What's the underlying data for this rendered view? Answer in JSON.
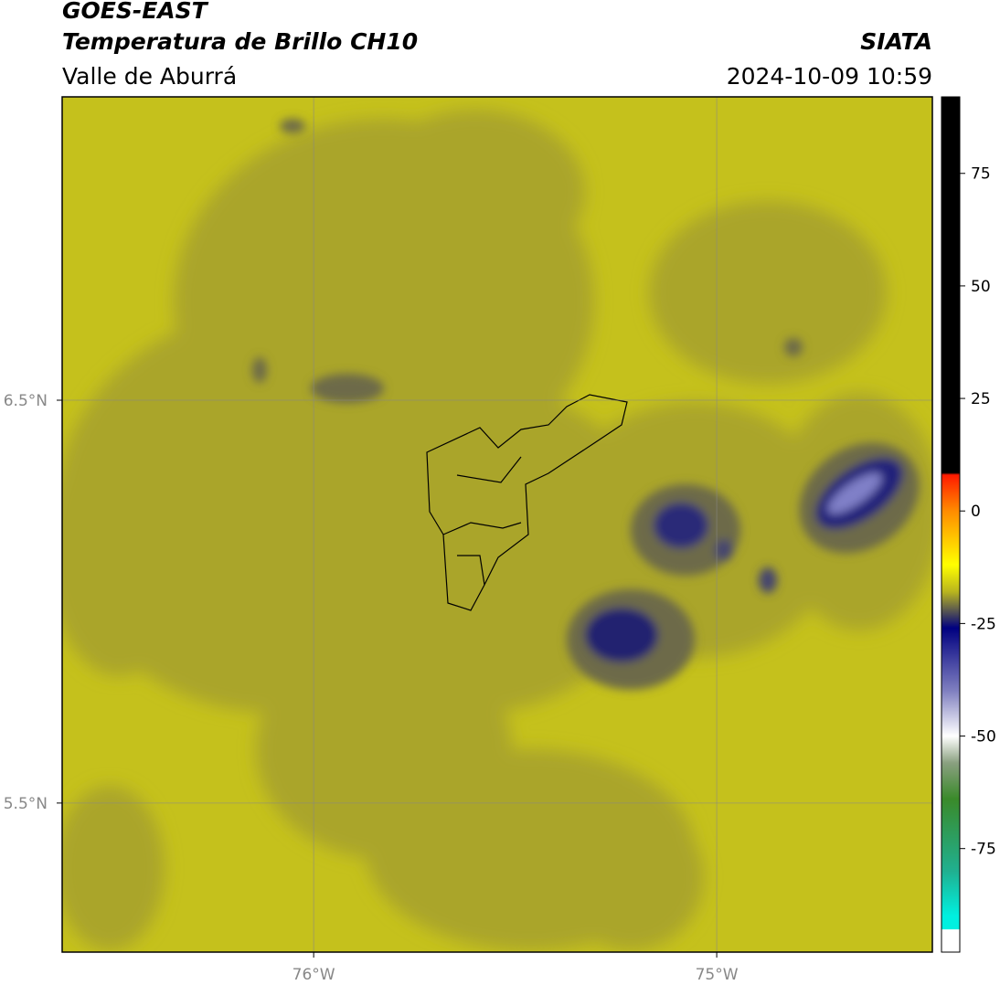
{
  "header": {
    "title": "GOES-EAST",
    "subtitle": "Temperatura de Brillo CH10",
    "region": "Valle de Aburrá",
    "source": "SIATA",
    "datetime": "2024-10-09 10:59"
  },
  "map": {
    "xlim": [
      -76.624,
      -74.465
    ],
    "ylim": [
      5.13,
      7.253
    ],
    "xticks": [
      {
        "value": -76,
        "label": "76°W"
      },
      {
        "value": -75,
        "label": "75°W"
      }
    ],
    "yticks": [
      {
        "value": 6.5,
        "label": "6.5°N"
      },
      {
        "value": 5.5,
        "label": "5.5°N"
      }
    ],
    "grid": true
  },
  "colorbar": {
    "lim": [
      -98,
      92
    ],
    "ticks": [
      75,
      50,
      25,
      0,
      -25,
      -50,
      -75
    ],
    "stops": [
      {
        "value": 92,
        "color": "#000000"
      },
      {
        "value": 8.5,
        "color": "#000000"
      },
      {
        "value": 8,
        "color": "#ff1a00"
      },
      {
        "value": 0,
        "color": "#ff8c00"
      },
      {
        "value": -12,
        "color": "#ffff00"
      },
      {
        "value": -18,
        "color": "#b8b41e"
      },
      {
        "value": -26,
        "color": "#000080"
      },
      {
        "value": -40,
        "color": "#8080c0"
      },
      {
        "value": -50,
        "color": "#ffffff"
      },
      {
        "value": -56,
        "color": "#8aa080"
      },
      {
        "value": -64,
        "color": "#3a8a2a"
      },
      {
        "value": -80,
        "color": "#20b090"
      },
      {
        "value": -90,
        "color": "#00f0e0"
      },
      {
        "value": -92.9,
        "color": "#00f0e0"
      },
      {
        "value": -93,
        "color": "#ffffff"
      },
      {
        "value": -98,
        "color": "#ffffff"
      }
    ]
  }
}
